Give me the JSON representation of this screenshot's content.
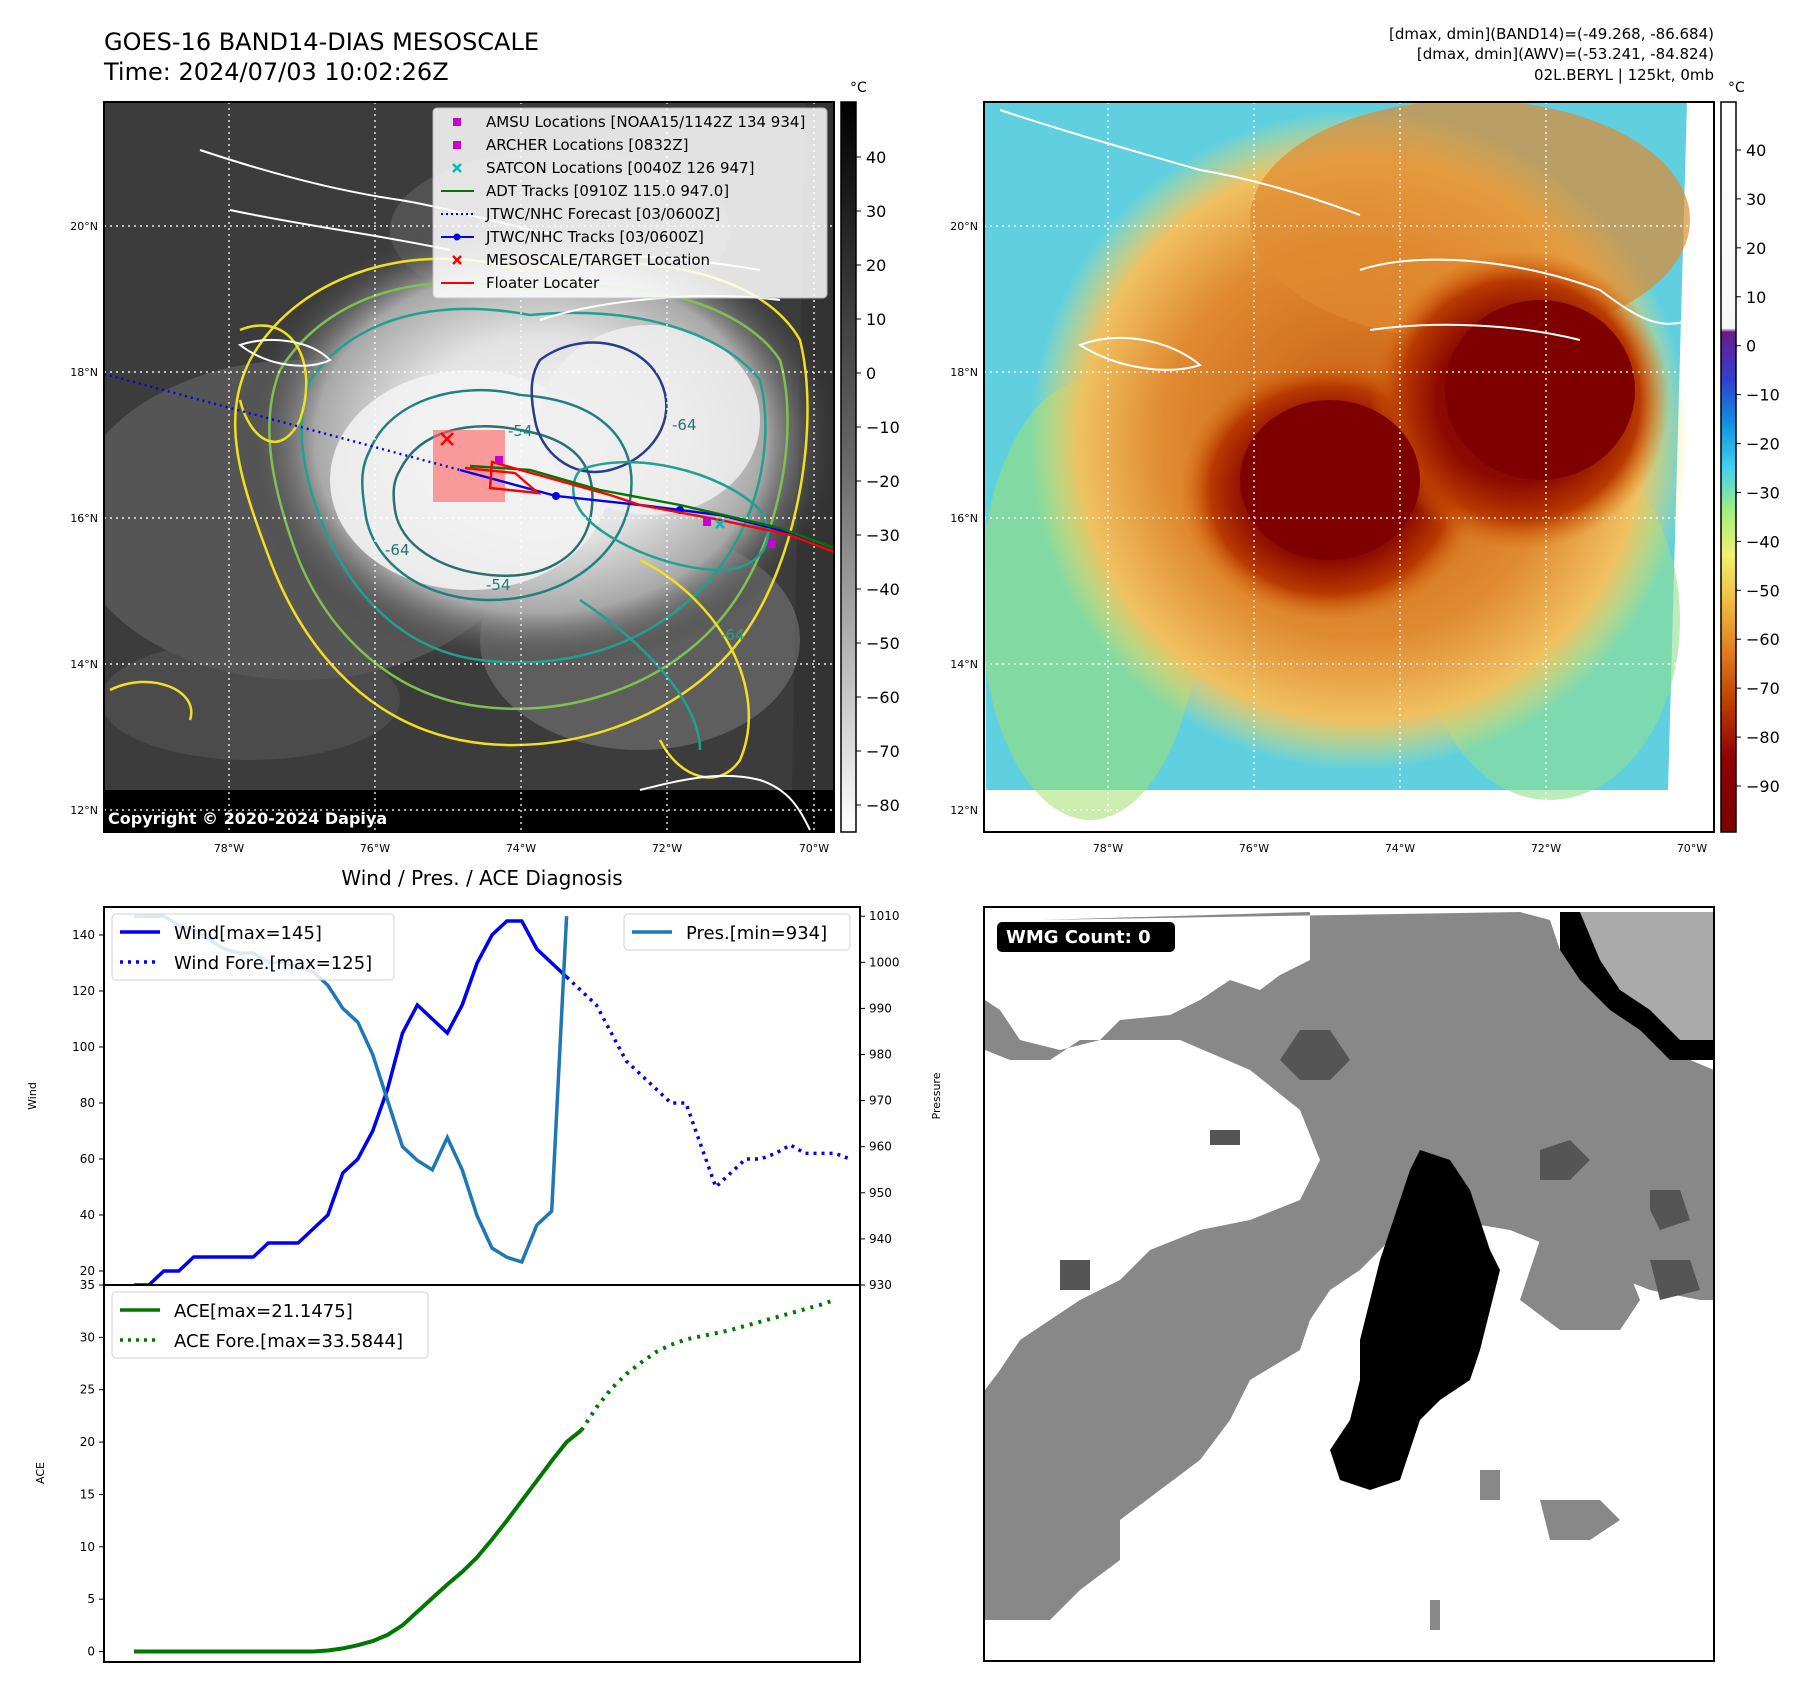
{
  "header": {
    "title": "GOES-16 BAND14-DIAS MESOSCALE",
    "time": "Time: 2024/07/03 10:02:26Z",
    "dmax_band14": "[dmax, dmin](BAND14)=(-49.268, -86.684)",
    "dmax_awv": "[dmax, dmin](AWV)=(-53.241, -84.824)",
    "storm_info": "02L.BERYL | 125kt, 0mb"
  },
  "colors": {
    "wind": "#0000ee",
    "pressure": "#1f77b4",
    "ace": "#007700",
    "map_bg": "#3a3a3a",
    "coast": "#ffffff",
    "marker_magenta": "#cc00cc",
    "marker_cyan": "#00bbbb",
    "floater": "#ff0000"
  },
  "map_left": {
    "unit_label": "°C",
    "lat_labels": [
      "20°N",
      "18°N",
      "16°N",
      "14°N",
      "12°N"
    ],
    "lon_labels": [
      "78°W",
      "76°W",
      "74°W",
      "72°W",
      "70°W"
    ],
    "colorbar_ticks": [
      "40",
      "30",
      "20",
      "10",
      "0",
      "−10",
      "−20",
      "−30",
      "−40",
      "−50",
      "−60",
      "−70",
      "−80"
    ],
    "copyright": "Copyright © 2020-2024 Dapiya",
    "contour_labels": [
      "-54",
      "-64",
      "-64",
      "-54",
      "-64"
    ],
    "legend": [
      {
        "label": "AMSU Locations [NOAA15/1142Z 134 934]",
        "kind": "square",
        "color": "#cc00cc"
      },
      {
        "label": "ARCHER Locations [0832Z]",
        "kind": "square",
        "color": "#cc00cc"
      },
      {
        "label": "SATCON Locations [0040Z 126 947]",
        "kind": "x",
        "color": "#00bbbb"
      },
      {
        "label": "ADT Tracks [0910Z 115.0 947.0]",
        "kind": "line",
        "color": "#007700"
      },
      {
        "label": "JTWC/NHC Forecast [03/0600Z]",
        "kind": "dotted",
        "color": "#0000ee"
      },
      {
        "label": "JTWC/NHC Tracks [03/0600Z]",
        "kind": "line-dot",
        "color": "#0000ee"
      },
      {
        "label": "MESOSCALE/TARGET Location",
        "kind": "x",
        "color": "#ff0000"
      },
      {
        "label": "Floater Locater",
        "kind": "line",
        "color": "#ff0000"
      }
    ]
  },
  "map_right": {
    "unit_label": "°C",
    "lat_labels": [
      "20°N",
      "18°N",
      "16°N",
      "14°N",
      "12°N"
    ],
    "lon_labels": [
      "78°W",
      "76°W",
      "74°W",
      "72°W",
      "70°W"
    ],
    "colorbar_ticks": [
      "40",
      "30",
      "20",
      "10",
      "0",
      "−10",
      "−20",
      "−30",
      "−40",
      "−50",
      "−60",
      "−70",
      "−80",
      "−90"
    ]
  },
  "wmg_panel": {
    "badge": "WMG Count: 0"
  },
  "chart_data": [
    {
      "type": "line",
      "title": "Wind / Pres. / ACE Diagnosis",
      "ylabel": "Wind",
      "y2label": "Pressure",
      "ylim": [
        15,
        150
      ],
      "y2lim": [
        930,
        1012
      ],
      "yticks": [
        20,
        40,
        60,
        80,
        100,
        120,
        140
      ],
      "y2ticks": [
        930,
        940,
        950,
        960,
        970,
        980,
        990,
        1000,
        1010
      ],
      "series": [
        {
          "name": "Wind[max=145]",
          "axis": "left",
          "style": "solid",
          "values": [
            15,
            15,
            20,
            20,
            25,
            25,
            25,
            25,
            25,
            30,
            30,
            30,
            35,
            40,
            55,
            60,
            70,
            85,
            105,
            115,
            110,
            105,
            115,
            130,
            140,
            145,
            145,
            135,
            130,
            125
          ]
        },
        {
          "name": "Wind Fore.[max=125]",
          "axis": "left",
          "style": "dotted",
          "start_index": 29,
          "values": [
            125,
            120,
            115,
            105,
            95,
            90,
            85,
            80,
            80,
            65,
            50,
            55,
            60,
            60,
            62,
            65,
            62,
            62,
            62,
            60
          ]
        },
        {
          "name": "Pres.[min=934]",
          "axis": "right",
          "style": "solid",
          "values": [
            1010,
            1010,
            1010,
            1008,
            1007,
            1005,
            1003,
            1002,
            1002,
            1000,
            1000,
            999,
            998,
            995,
            990,
            987,
            980,
            970,
            960,
            957,
            955,
            962,
            955,
            945,
            938,
            936,
            935,
            943,
            946,
            1010
          ]
        }
      ]
    },
    {
      "type": "line",
      "ylabel": "ACE",
      "ylim": [
        -1,
        35
      ],
      "yticks": [
        0,
        5,
        10,
        15,
        20,
        25,
        30,
        35
      ],
      "series": [
        {
          "name": "ACE[max=21.1475]",
          "style": "solid",
          "values": [
            0,
            0,
            0,
            0,
            0,
            0,
            0,
            0,
            0,
            0,
            0,
            0,
            0,
            0.1,
            0.3,
            0.6,
            1.0,
            1.6,
            2.5,
            3.8,
            5.1,
            6.4,
            7.6,
            9.0,
            10.7,
            12.5,
            14.4,
            16.3,
            18.2,
            20.0,
            21.1475
          ]
        },
        {
          "name": "ACE Fore.[max=33.5844]",
          "style": "dotted",
          "start_index": 30,
          "values": [
            21.1475,
            23.3,
            25.1,
            26.5,
            27.6,
            28.6,
            29.3,
            29.8,
            30.1,
            30.4,
            30.7,
            31.1,
            31.5,
            31.9,
            32.3,
            32.7,
            33.1,
            33.5844
          ]
        }
      ]
    }
  ]
}
